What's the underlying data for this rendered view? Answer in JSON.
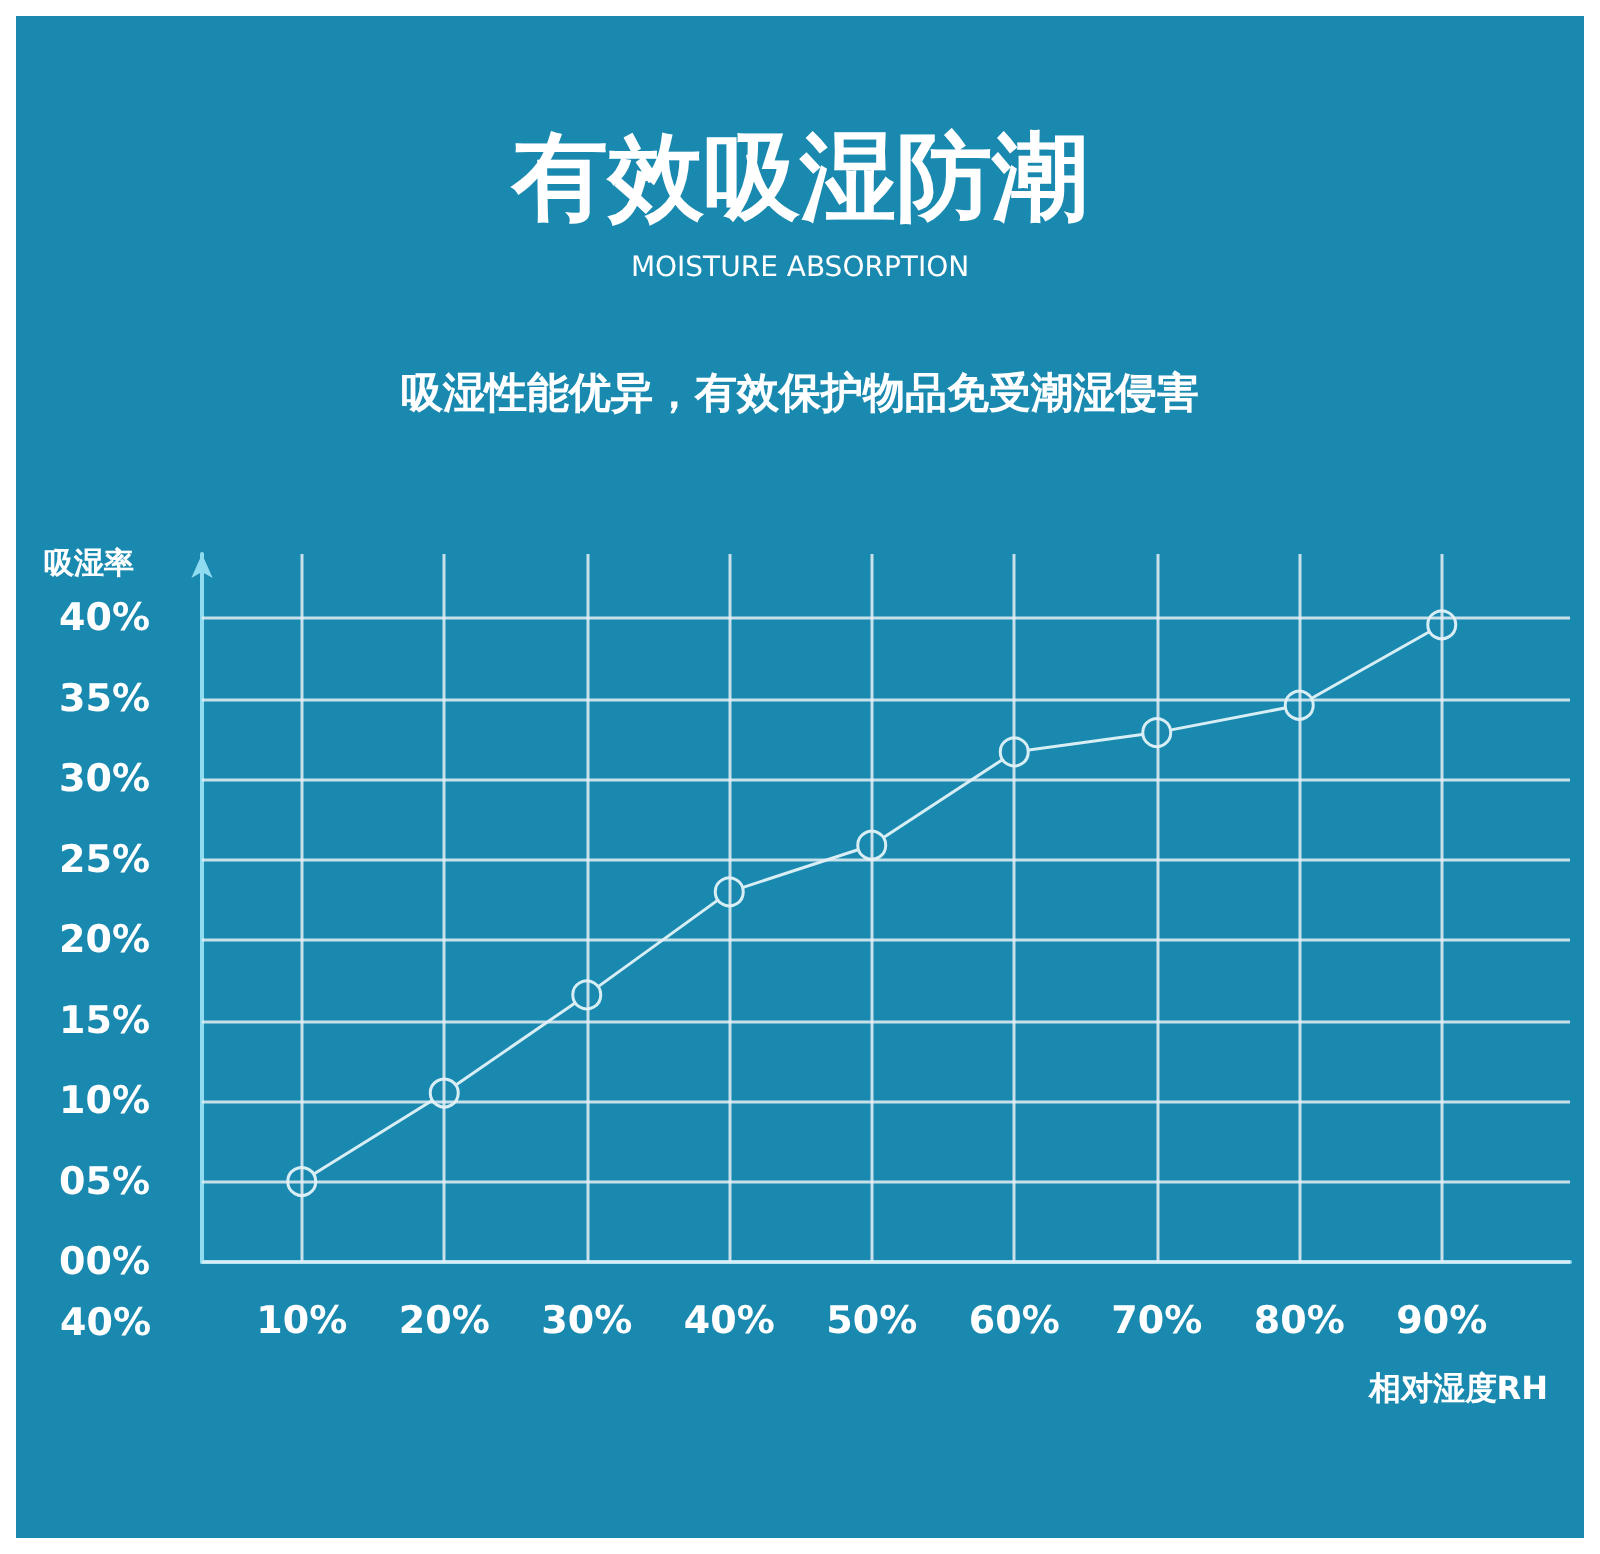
{
  "chart_data": {
    "type": "line",
    "title": "有效吸湿防潮",
    "subtitle": "MOISTURE ABSORPTION",
    "annotations": [
      "吸湿性能优异，有效保护物品免受潮湿侵害",
      "40%"
    ],
    "xlabel": "相对湿度RH",
    "ylabel": "吸湿率",
    "x": [
      10,
      20,
      30,
      40,
      50,
      60,
      70,
      80,
      90
    ],
    "series": [
      {
        "color": "#d8eef5",
        "values": [
          5,
          10.5,
          16.6,
          23,
          25.9,
          31.7,
          32.9,
          34.6,
          39.6
        ]
      }
    ],
    "xlim": [
      3,
      99
    ],
    "xticks": [
      {
        "value": 10,
        "label": "10%"
      },
      {
        "value": 20,
        "label": "20%"
      },
      {
        "value": 30,
        "label": "30%"
      },
      {
        "value": 40,
        "label": "40%"
      },
      {
        "value": 50,
        "label": "50%"
      },
      {
        "value": 60,
        "label": "60%"
      },
      {
        "value": 70,
        "label": "70%"
      },
      {
        "value": 80,
        "label": "80%"
      },
      {
        "value": 90,
        "label": "90%"
      }
    ],
    "ylim": [
      0,
      44
    ],
    "yticks": [
      {
        "value": 0,
        "label": "00%"
      },
      {
        "value": 5,
        "label": "05%"
      },
      {
        "value": 10,
        "label": "10%"
      },
      {
        "value": 15,
        "label": "15%"
      },
      {
        "value": 20,
        "label": "20%"
      },
      {
        "value": 25,
        "label": "25%"
      },
      {
        "value": 30,
        "label": "30%"
      },
      {
        "value": 35,
        "label": "35%"
      },
      {
        "value": 40,
        "label": "40%"
      }
    ],
    "grid": true,
    "marker": "circle",
    "line_style": "solid"
  }
}
